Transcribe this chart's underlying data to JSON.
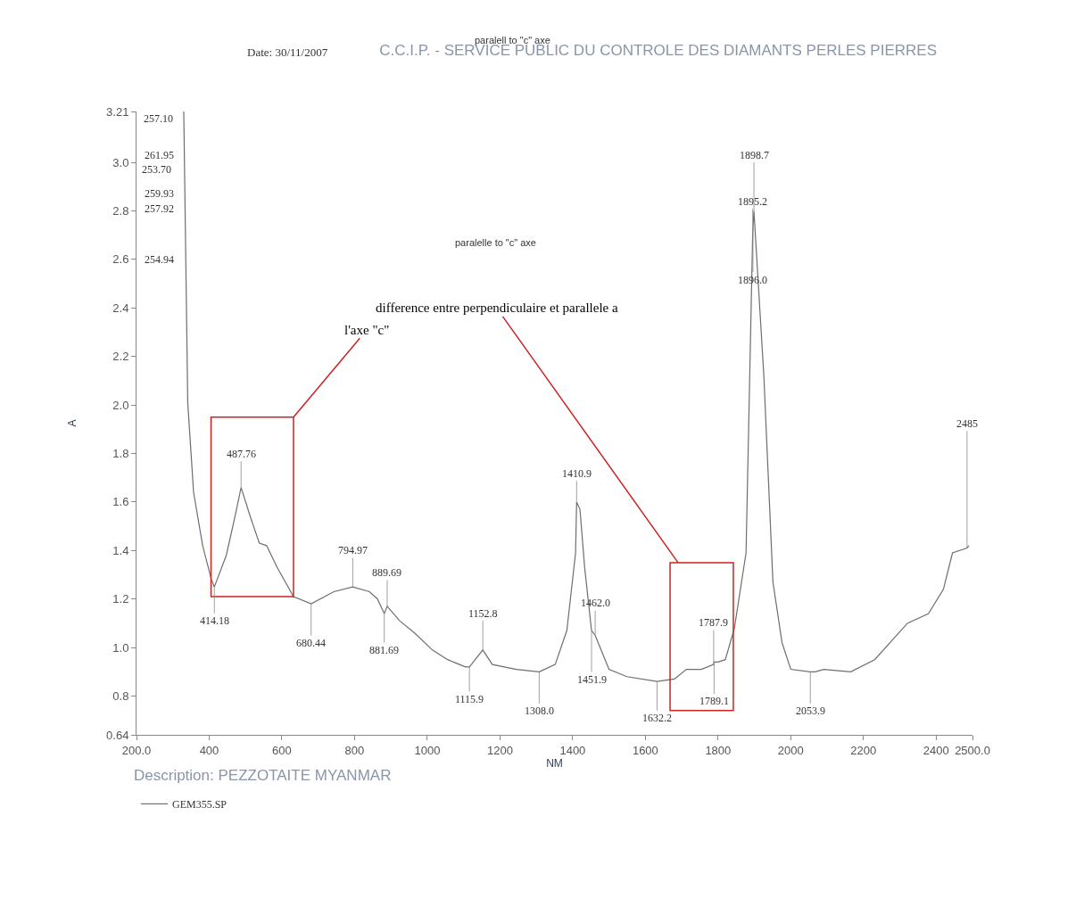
{
  "chart_data": {
    "type": "line",
    "title": "C.C.I.P. - SERVICE PUBLIC DU CONTROLE DES DIAMANTS PERLES PIERRES",
    "xlabel": "NM",
    "ylabel": "A",
    "series": [
      {
        "name": "GEM355.SP",
        "color": "#6e6e6e",
        "x": [
          330,
          341,
          357,
          382,
          406,
          414.18,
          447,
          471,
          487.76,
          513,
          538,
          558,
          587,
          632,
          680.44,
          743,
          794.97,
          841,
          863,
          881.69,
          889.69,
          924,
          965,
          1014,
          1056,
          1105,
          1115.9,
          1152.8,
          1179,
          1245,
          1308.0,
          1352,
          1384,
          1408,
          1410.9,
          1420,
          1433,
          1451.9,
          1462.0,
          1500,
          1549,
          1632.2,
          1680,
          1713,
          1754,
          1787.9,
          1789.1,
          1800,
          1820,
          1845,
          1877,
          1895.2,
          1896.0,
          1898.7,
          1926,
          1951,
          1976,
          2000,
          2053.9,
          2067,
          2091,
          2165,
          2231,
          2321,
          2379,
          2420,
          2445,
          2485,
          2490
        ],
        "values": [
          3.21,
          2.01,
          1.64,
          1.42,
          1.28,
          1.25,
          1.38,
          1.54,
          1.66,
          1.54,
          1.43,
          1.42,
          1.33,
          1.21,
          1.18,
          1.23,
          1.25,
          1.23,
          1.2,
          1.14,
          1.17,
          1.11,
          1.06,
          0.99,
          0.95,
          0.92,
          0.92,
          0.99,
          0.93,
          0.91,
          0.9,
          0.93,
          1.07,
          1.39,
          1.6,
          1.57,
          1.33,
          1.07,
          1.05,
          0.91,
          0.88,
          0.86,
          0.87,
          0.91,
          0.91,
          0.93,
          0.94,
          0.94,
          0.95,
          1.08,
          1.39,
          2.7,
          2.73,
          2.8,
          2.12,
          1.27,
          1.02,
          0.91,
          0.9,
          0.9,
          0.91,
          0.9,
          0.95,
          1.1,
          1.14,
          1.24,
          1.39,
          1.41,
          1.42
        ]
      }
    ],
    "xlim": [
      200,
      2500
    ],
    "xticks": [
      {
        "value": 200,
        "label": "200.0"
      },
      400,
      600,
      800,
      1000,
      1200,
      1400,
      1600,
      1800,
      2000,
      2200,
      2400,
      {
        "value": 2500,
        "label": "2500.0"
      }
    ],
    "ylim": [
      0.64,
      3.21
    ],
    "yticks": [
      0.64,
      0.8,
      {
        "value": 1.0,
        "label": "1.0"
      },
      1.2,
      1.4,
      1.6,
      1.8,
      {
        "value": 2.0,
        "label": "2.0"
      },
      2.2,
      2.4,
      2.6,
      2.8,
      {
        "value": 3.0,
        "label": "3.0"
      },
      3.21
    ],
    "legend": "bottom left",
    "marker": "none",
    "line_style": "solid",
    "annotations": [
      "Date: 30/11/2007",
      "paralell to \"c\" axe",
      "paralelle to \"c\" axe",
      "difference entre perpendiculaire et parallele a",
      "l'axe \"c\"",
      "Description: PEZZOTAITE MYANMAR",
      "257.10",
      "261.95",
      "253.70",
      "259.93",
      "257.92",
      "254.94",
      {
        "text": "487.76",
        "x": 487.76,
        "y": 1.66
      },
      {
        "text": "414.18",
        "x": 414.18,
        "y": 1.25
      },
      {
        "text": "680.44",
        "x": 680.44,
        "y": 1.18
      },
      {
        "text": "794.97",
        "x": 794.97,
        "y": 1.25
      },
      {
        "text": "889.69",
        "x": 889.69,
        "y": 1.17
      },
      {
        "text": "881.69",
        "x": 881.69,
        "y": 1.14
      },
      {
        "text": "1115.9",
        "x": 1115.9,
        "y": 0.92
      },
      {
        "text": "1152.8",
        "x": 1152.8,
        "y": 0.99
      },
      {
        "text": "1308.0",
        "x": 1308.0,
        "y": 0.9
      },
      {
        "text": "1410.9",
        "x": 1410.9,
        "y": 1.6
      },
      {
        "text": "1462.0",
        "x": 1462.0,
        "y": 1.05
      },
      {
        "text": "1451.9",
        "x": 1451.9,
        "y": 1.07
      },
      {
        "text": "1632.2",
        "x": 1632.2,
        "y": 0.86
      },
      {
        "text": "1787.9",
        "x": 1787.9,
        "y": 0.93
      },
      {
        "text": "1789.1",
        "x": 1789.1,
        "y": 0.94
      },
      {
        "text": "1898.7",
        "x": 1898.7,
        "y": 2.8
      },
      {
        "text": "1895.2",
        "x": 1895.2,
        "y": 2.7
      },
      {
        "text": "1896.0",
        "x": 1896.0,
        "y": 2.73
      },
      {
        "text": "2053.9",
        "x": 2053.9,
        "y": 0.9
      },
      {
        "text": "2485",
        "x": 2485,
        "y": 1.41
      }
    ]
  }
}
